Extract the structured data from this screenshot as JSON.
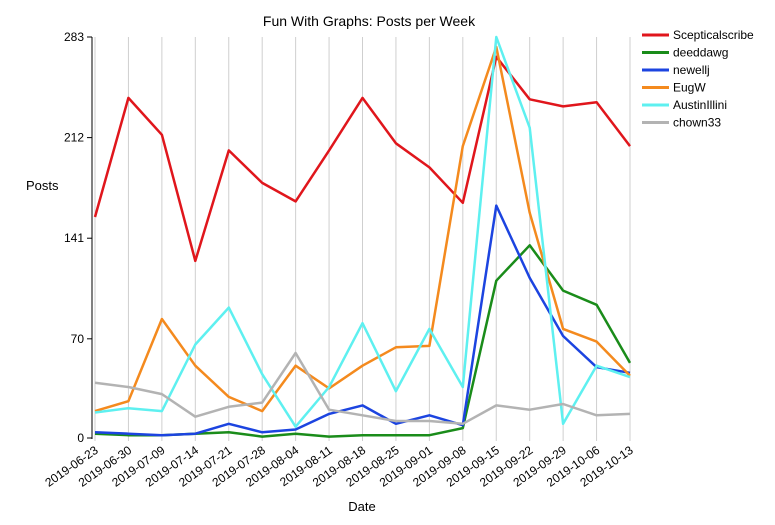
{
  "chart_data": {
    "type": "line",
    "title": "Fun With Graphs: Posts per Week",
    "xlabel": "Date",
    "ylabel": "Posts",
    "x": [
      "2019-06-23",
      "2019-06-30",
      "2019-07-09",
      "2019-07-14",
      "2019-07-21",
      "2019-07-28",
      "2019-08-04",
      "2019-08-11",
      "2019-08-18",
      "2019-08-25",
      "2019-09-01",
      "2019-09-08",
      "2019-09-15",
      "2019-09-22",
      "2019-09-29",
      "2019-10-06",
      "2019-10-13"
    ],
    "yticks": [
      0,
      70,
      141,
      212,
      283
    ],
    "ylim": [
      0,
      283
    ],
    "grid": "vertical",
    "legend": "top-right",
    "series": [
      {
        "name": "Scepticalscribe",
        "color": "#e0161c",
        "values": [
          156,
          240,
          214,
          125,
          203,
          180,
          167,
          203,
          240,
          208,
          191,
          166,
          269,
          239,
          234,
          237,
          206
        ]
      },
      {
        "name": "deeddawg",
        "color": "#1a8c1a",
        "values": [
          3,
          2,
          2,
          3,
          4,
          1,
          3,
          1,
          2,
          2,
          2,
          7,
          111,
          136,
          104,
          94,
          53
        ]
      },
      {
        "name": "newellj",
        "color": "#1c44e0",
        "values": [
          4,
          3,
          2,
          3,
          10,
          4,
          6,
          17,
          23,
          10,
          16,
          9,
          164,
          113,
          72,
          50,
          46
        ]
      },
      {
        "name": "EugW",
        "color": "#f48a1e",
        "values": [
          19,
          26,
          84,
          51,
          29,
          19,
          51,
          35,
          51,
          64,
          65,
          206,
          276,
          159,
          77,
          68,
          44
        ]
      },
      {
        "name": "AustinIllini",
        "color": "#5ef0f0",
        "values": [
          18,
          21,
          19,
          66,
          92,
          45,
          8,
          36,
          81,
          33,
          77,
          36,
          283,
          219,
          10,
          51,
          43
        ]
      },
      {
        "name": "chown33",
        "color": "#b3b3b3",
        "values": [
          39,
          36,
          31,
          15,
          22,
          25,
          60,
          20,
          16,
          12,
          12,
          10,
          23,
          20,
          24,
          16,
          17
        ]
      }
    ]
  }
}
